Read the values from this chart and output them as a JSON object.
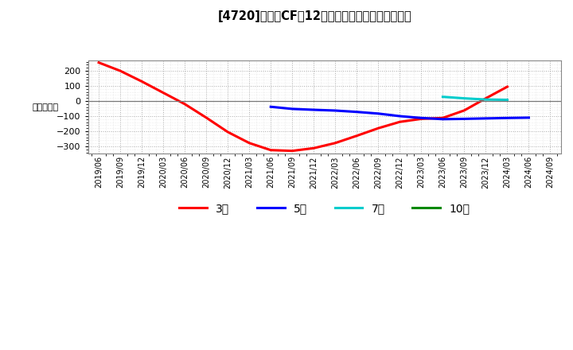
{
  "title": "[4720]　営業CFだ12か月移動合計の平均値の推移",
  "ylabel": "（百万円）",
  "background_color": "#ffffff",
  "plot_bg_color": "#ffffff",
  "grid_color": "#aaaaaa",
  "ylim": [
    -350,
    270
  ],
  "yticks": [
    -300,
    -200,
    -100,
    0,
    100,
    200
  ],
  "series": {
    "3year": {
      "label": "3年",
      "color": "#ff0000",
      "dates": [
        "2019/06",
        "2019/09",
        "2019/12",
        "2020/03",
        "2020/06",
        "2020/09",
        "2020/12",
        "2021/03",
        "2021/06",
        "2021/09",
        "2021/12",
        "2022/03",
        "2022/06",
        "2022/09",
        "2022/12",
        "2023/03",
        "2023/06",
        "2023/09",
        "2023/12",
        "2024/03"
      ],
      "values": [
        255,
        200,
        130,
        55,
        -20,
        -110,
        -205,
        -278,
        -325,
        -330,
        -312,
        -278,
        -230,
        -180,
        -138,
        -118,
        -112,
        -62,
        18,
        95
      ]
    },
    "5year": {
      "label": "5年",
      "color": "#0000ff",
      "dates": [
        "2021/06",
        "2021/09",
        "2021/12",
        "2022/03",
        "2022/06",
        "2022/09",
        "2022/12",
        "2023/03",
        "2023/06",
        "2023/09",
        "2023/12",
        "2024/03",
        "2024/06"
      ],
      "values": [
        -38,
        -52,
        -58,
        -63,
        -72,
        -83,
        -100,
        -112,
        -120,
        -118,
        -115,
        -112,
        -110
      ]
    },
    "7year": {
      "label": "7年",
      "color": "#00cccc",
      "dates": [
        "2023/06",
        "2023/09",
        "2023/12",
        "2024/03"
      ],
      "values": [
        28,
        18,
        10,
        8
      ]
    },
    "10year": {
      "label": "10年",
      "color": "#008800",
      "dates": [],
      "values": []
    }
  },
  "xtick_labels": [
    "2019/06",
    "2019/09",
    "2019/12",
    "2020/03",
    "2020/06",
    "2020/09",
    "2020/12",
    "2021/03",
    "2021/06",
    "2021/09",
    "2021/12",
    "2022/03",
    "2022/06",
    "2022/09",
    "2022/12",
    "2023/03",
    "2023/06",
    "2023/09",
    "2023/12",
    "2024/03",
    "2024/06",
    "2024/09"
  ],
  "linewidth": 2.2
}
